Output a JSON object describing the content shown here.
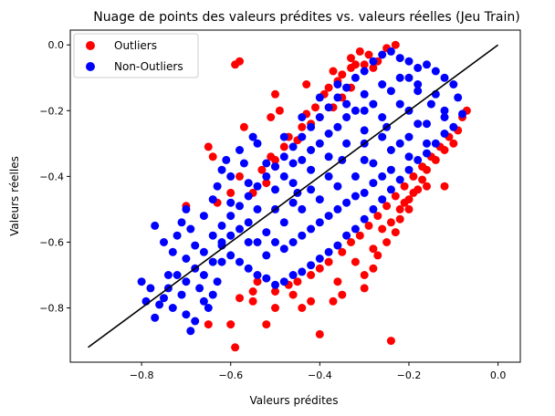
{
  "chart_data": {
    "type": "scatter",
    "title": "Nuage de points des valeurs prédites vs. valeurs réelles (Jeu Train)",
    "xlabel": "Valeurs prédites",
    "ylabel": "Valeurs réelles",
    "xlim": [
      -0.96,
      0.05
    ],
    "ylim": [
      -0.965,
      0.045
    ],
    "xticks": [
      -0.8,
      -0.6,
      -0.4,
      -0.2,
      0.0
    ],
    "xtick_labels": [
      "−0.8",
      "−0.6",
      "−0.4",
      "−0.2",
      "0.0"
    ],
    "yticks": [
      -0.8,
      -0.6,
      -0.4,
      -0.2,
      0.0
    ],
    "ytick_labels": [
      "−0.8",
      "−0.6",
      "−0.4",
      "−0.2",
      "0.0"
    ],
    "grid": false,
    "legend_position": "top-left",
    "series": [
      {
        "name": "Outliers",
        "color": "#ff0000",
        "points": [
          [
            -0.5,
            -0.35
          ],
          [
            -0.5,
            -0.37
          ],
          [
            -0.47,
            -0.28
          ],
          [
            -0.44,
            -0.25
          ],
          [
            -0.43,
            -0.21
          ],
          [
            -0.41,
            -0.19
          ],
          [
            -0.39,
            -0.15
          ],
          [
            -0.38,
            -0.13
          ],
          [
            -0.36,
            -0.11
          ],
          [
            -0.35,
            -0.09
          ],
          [
            -0.33,
            -0.07
          ],
          [
            -0.33,
            -0.04
          ],
          [
            -0.32,
            -0.06
          ],
          [
            -0.31,
            -0.02
          ],
          [
            -0.3,
            -0.06
          ],
          [
            -0.29,
            -0.03
          ],
          [
            -0.28,
            -0.07
          ],
          [
            -0.27,
            -0.05
          ],
          [
            -0.33,
            -0.13
          ],
          [
            -0.35,
            -0.16
          ],
          [
            -0.37,
            -0.19
          ],
          [
            -0.4,
            -0.22
          ],
          [
            -0.42,
            -0.24
          ],
          [
            -0.45,
            -0.29
          ],
          [
            -0.48,
            -0.31
          ],
          [
            -0.51,
            -0.34
          ],
          [
            -0.53,
            -0.38
          ],
          [
            -0.52,
            -0.42
          ],
          [
            -0.55,
            -0.45
          ],
          [
            -0.59,
            -0.06
          ],
          [
            -0.58,
            -0.05
          ],
          [
            -0.5,
            -0.15
          ],
          [
            -0.49,
            -0.2
          ],
          [
            -0.51,
            -0.22
          ],
          [
            -0.57,
            -0.25
          ],
          [
            -0.65,
            -0.31
          ],
          [
            -0.64,
            -0.34
          ],
          [
            -0.7,
            -0.49
          ],
          [
            -0.6,
            -0.45
          ],
          [
            -0.58,
            -0.4
          ],
          [
            -0.63,
            -0.48
          ],
          [
            -0.23,
            0.0
          ],
          [
            -0.25,
            -0.01
          ],
          [
            -0.37,
            -0.08
          ],
          [
            -0.43,
            -0.12
          ],
          [
            -0.24,
            -0.9
          ],
          [
            -0.4,
            -0.88
          ],
          [
            -0.59,
            -0.92
          ],
          [
            -0.65,
            -0.85
          ],
          [
            -0.6,
            -0.85
          ],
          [
            -0.52,
            -0.85
          ],
          [
            -0.5,
            -0.8
          ],
          [
            -0.44,
            -0.8
          ],
          [
            -0.42,
            -0.78
          ],
          [
            -0.37,
            -0.78
          ],
          [
            -0.35,
            -0.76
          ],
          [
            -0.3,
            -0.74
          ],
          [
            -0.3,
            -0.7
          ],
          [
            -0.28,
            -0.68
          ],
          [
            -0.27,
            -0.64
          ],
          [
            -0.25,
            -0.6
          ],
          [
            -0.23,
            -0.57
          ],
          [
            -0.22,
            -0.53
          ],
          [
            -0.2,
            -0.5
          ],
          [
            -0.2,
            -0.47
          ],
          [
            -0.18,
            -0.44
          ],
          [
            -0.16,
            -0.43
          ],
          [
            -0.12,
            -0.43
          ],
          [
            -0.16,
            -0.38
          ],
          [
            -0.14,
            -0.35
          ],
          [
            -0.12,
            -0.32
          ],
          [
            -0.1,
            -0.3
          ],
          [
            -0.09,
            -0.26
          ],
          [
            -0.08,
            -0.22
          ],
          [
            -0.07,
            -0.2
          ],
          [
            -0.55,
            -0.75
          ],
          [
            -0.55,
            -0.78
          ],
          [
            -0.5,
            -0.75
          ],
          [
            -0.47,
            -0.73
          ],
          [
            -0.45,
            -0.72
          ],
          [
            -0.42,
            -0.7
          ],
          [
            -0.4,
            -0.68
          ],
          [
            -0.38,
            -0.66
          ],
          [
            -0.35,
            -0.63
          ],
          [
            -0.33,
            -0.6
          ],
          [
            -0.31,
            -0.58
          ],
          [
            -0.29,
            -0.55
          ],
          [
            -0.27,
            -0.52
          ],
          [
            -0.25,
            -0.49
          ],
          [
            -0.23,
            -0.46
          ],
          [
            -0.21,
            -0.43
          ],
          [
            -0.19,
            -0.4
          ],
          [
            -0.17,
            -0.37
          ],
          [
            -0.15,
            -0.34
          ],
          [
            -0.13,
            -0.31
          ],
          [
            -0.11,
            -0.28
          ],
          [
            -0.58,
            -0.77
          ],
          [
            -0.54,
            -0.72
          ],
          [
            -0.46,
            -0.76
          ],
          [
            -0.36,
            -0.72
          ],
          [
            -0.32,
            -0.66
          ],
          [
            -0.28,
            -0.62
          ],
          [
            -0.26,
            -0.56
          ],
          [
            -0.24,
            -0.54
          ],
          [
            -0.22,
            -0.5
          ],
          [
            -0.21,
            -0.48
          ],
          [
            -0.19,
            -0.45
          ],
          [
            -0.17,
            -0.41
          ]
        ]
      },
      {
        "name": "Non-Outliers",
        "color": "#0000ff",
        "points": [
          [
            -0.8,
            -0.72
          ],
          [
            -0.79,
            -0.78
          ],
          [
            -0.77,
            -0.83
          ],
          [
            -0.76,
            -0.79
          ],
          [
            -0.75,
            -0.77
          ],
          [
            -0.74,
            -0.74
          ],
          [
            -0.73,
            -0.8
          ],
          [
            -0.72,
            -0.7
          ],
          [
            -0.71,
            -0.76
          ],
          [
            -0.7,
            -0.82
          ],
          [
            -0.69,
            -0.87
          ],
          [
            -0.68,
            -0.84
          ],
          [
            -0.67,
            -0.74
          ],
          [
            -0.66,
            -0.78
          ],
          [
            -0.65,
            -0.8
          ],
          [
            -0.64,
            -0.76
          ],
          [
            -0.63,
            -0.72
          ],
          [
            -0.62,
            -0.66
          ],
          [
            -0.77,
            -0.55
          ],
          [
            -0.75,
            -0.6
          ],
          [
            -0.73,
            -0.63
          ],
          [
            -0.72,
            -0.58
          ],
          [
            -0.71,
            -0.54
          ],
          [
            -0.7,
            -0.5
          ],
          [
            -0.69,
            -0.56
          ],
          [
            -0.68,
            -0.61
          ],
          [
            -0.66,
            -0.52
          ],
          [
            -0.64,
            -0.47
          ],
          [
            -0.63,
            -0.43
          ],
          [
            -0.62,
            -0.38
          ],
          [
            -0.61,
            -0.35
          ],
          [
            -0.6,
            -0.4
          ],
          [
            -0.58,
            -0.32
          ],
          [
            -0.57,
            -0.36
          ],
          [
            -0.55,
            -0.28
          ],
          [
            -0.54,
            -0.3
          ],
          [
            -0.7,
            -0.65
          ],
          [
            -0.68,
            -0.68
          ],
          [
            -0.66,
            -0.63
          ],
          [
            -0.64,
            -0.58
          ],
          [
            -0.62,
            -0.55
          ],
          [
            -0.6,
            -0.52
          ],
          [
            -0.58,
            -0.49
          ],
          [
            -0.56,
            -0.46
          ],
          [
            -0.54,
            -0.43
          ],
          [
            -0.52,
            -0.4
          ],
          [
            -0.5,
            -0.37
          ],
          [
            -0.48,
            -0.34
          ],
          [
            -0.46,
            -0.31
          ],
          [
            -0.44,
            -0.28
          ],
          [
            -0.42,
            -0.25
          ],
          [
            -0.4,
            -0.22
          ],
          [
            -0.38,
            -0.19
          ],
          [
            -0.36,
            -0.16
          ],
          [
            -0.34,
            -0.13
          ],
          [
            -0.32,
            -0.1
          ],
          [
            -0.3,
            -0.08
          ],
          [
            -0.28,
            -0.05
          ],
          [
            -0.26,
            -0.03
          ],
          [
            -0.24,
            -0.02
          ],
          [
            -0.22,
            -0.04
          ],
          [
            -0.2,
            -0.05
          ],
          [
            -0.18,
            -0.07
          ],
          [
            -0.16,
            -0.06
          ],
          [
            -0.14,
            -0.08
          ],
          [
            -0.12,
            -0.1
          ],
          [
            -0.1,
            -0.12
          ],
          [
            -0.09,
            -0.16
          ],
          [
            -0.08,
            -0.21
          ],
          [
            -0.1,
            -0.25
          ],
          [
            -0.12,
            -0.27
          ],
          [
            -0.14,
            -0.3
          ],
          [
            -0.16,
            -0.33
          ],
          [
            -0.18,
            -0.35
          ],
          [
            -0.2,
            -0.38
          ],
          [
            -0.22,
            -0.41
          ],
          [
            -0.24,
            -0.44
          ],
          [
            -0.26,
            -0.47
          ],
          [
            -0.28,
            -0.5
          ],
          [
            -0.3,
            -0.53
          ],
          [
            -0.32,
            -0.56
          ],
          [
            -0.34,
            -0.58
          ],
          [
            -0.36,
            -0.61
          ],
          [
            -0.38,
            -0.63
          ],
          [
            -0.4,
            -0.65
          ],
          [
            -0.42,
            -0.67
          ],
          [
            -0.44,
            -0.69
          ],
          [
            -0.46,
            -0.7
          ],
          [
            -0.48,
            -0.72
          ],
          [
            -0.5,
            -0.73
          ],
          [
            -0.52,
            -0.71
          ],
          [
            -0.54,
            -0.7
          ],
          [
            -0.56,
            -0.68
          ],
          [
            -0.58,
            -0.66
          ],
          [
            -0.6,
            -0.64
          ],
          [
            -0.62,
            -0.61
          ],
          [
            -0.56,
            -0.6
          ],
          [
            -0.52,
            -0.57
          ],
          [
            -0.48,
            -0.54
          ],
          [
            -0.44,
            -0.5
          ],
          [
            -0.4,
            -0.47
          ],
          [
            -0.36,
            -0.43
          ],
          [
            -0.32,
            -0.4
          ],
          [
            -0.28,
            -0.36
          ],
          [
            -0.24,
            -0.32
          ],
          [
            -0.2,
            -0.28
          ],
          [
            -0.16,
            -0.24
          ],
          [
            -0.12,
            -0.2
          ],
          [
            -0.46,
            -0.42
          ],
          [
            -0.42,
            -0.38
          ],
          [
            -0.38,
            -0.34
          ],
          [
            -0.34,
            -0.3
          ],
          [
            -0.3,
            -0.26
          ],
          [
            -0.26,
            -0.22
          ],
          [
            -0.22,
            -0.18
          ],
          [
            -0.18,
            -0.14
          ],
          [
            -0.5,
            -0.5
          ],
          [
            -0.45,
            -0.45
          ],
          [
            -0.35,
            -0.35
          ],
          [
            -0.25,
            -0.25
          ],
          [
            -0.3,
            -0.2
          ],
          [
            -0.34,
            -0.22
          ],
          [
            -0.38,
            -0.27
          ],
          [
            -0.42,
            -0.32
          ],
          [
            -0.46,
            -0.36
          ],
          [
            -0.5,
            -0.44
          ],
          [
            -0.54,
            -0.5
          ],
          [
            -0.58,
            -0.56
          ],
          [
            -0.62,
            -0.6
          ],
          [
            -0.28,
            -0.42
          ],
          [
            -0.24,
            -0.38
          ],
          [
            -0.2,
            -0.34
          ],
          [
            -0.16,
            -0.3
          ],
          [
            -0.32,
            -0.46
          ],
          [
            -0.36,
            -0.5
          ],
          [
            -0.4,
            -0.54
          ],
          [
            -0.44,
            -0.58
          ],
          [
            -0.48,
            -0.62
          ],
          [
            -0.52,
            -0.64
          ],
          [
            -0.26,
            -0.12
          ],
          [
            -0.22,
            -0.1
          ],
          [
            -0.18,
            -0.12
          ],
          [
            -0.14,
            -0.15
          ],
          [
            -0.3,
            -0.15
          ],
          [
            -0.34,
            -0.18
          ],
          [
            -0.4,
            -0.3
          ],
          [
            -0.44,
            -0.35
          ],
          [
            -0.48,
            -0.4
          ],
          [
            -0.3,
            -0.35
          ],
          [
            -0.2,
            -0.2
          ],
          [
            -0.15,
            -0.18
          ],
          [
            -0.12,
            -0.22
          ],
          [
            -0.38,
            -0.4
          ],
          [
            -0.42,
            -0.44
          ],
          [
            -0.46,
            -0.48
          ],
          [
            -0.56,
            -0.54
          ],
          [
            -0.6,
            -0.58
          ],
          [
            -0.66,
            -0.7
          ],
          [
            -0.7,
            -0.72
          ],
          [
            -0.74,
            -0.7
          ],
          [
            -0.78,
            -0.74
          ],
          [
            -0.64,
            -0.66
          ],
          [
            -0.3,
            -0.3
          ],
          [
            -0.26,
            -0.28
          ],
          [
            -0.36,
            -0.25
          ],
          [
            -0.32,
            -0.2
          ],
          [
            -0.28,
            -0.18
          ],
          [
            -0.24,
            -0.14
          ],
          [
            -0.2,
            -0.1
          ],
          [
            -0.18,
            -0.24
          ],
          [
            -0.22,
            -0.3
          ],
          [
            -0.26,
            -0.4
          ],
          [
            -0.3,
            -0.45
          ],
          [
            -0.34,
            -0.48
          ],
          [
            -0.38,
            -0.52
          ],
          [
            -0.42,
            -0.56
          ],
          [
            -0.46,
            -0.6
          ],
          [
            -0.5,
            -0.6
          ],
          [
            -0.54,
            -0.6
          ],
          [
            -0.6,
            -0.48
          ],
          [
            -0.56,
            -0.42
          ],
          [
            -0.52,
            -0.36
          ],
          [
            -0.48,
            -0.28
          ],
          [
            -0.44,
            -0.22
          ],
          [
            -0.4,
            -0.16
          ],
          [
            -0.36,
            -0.12
          ]
        ]
      }
    ],
    "reference_line": {
      "color": "#000000",
      "x": [
        -0.92,
        0.0
      ],
      "y": [
        -0.92,
        0.0
      ]
    }
  }
}
